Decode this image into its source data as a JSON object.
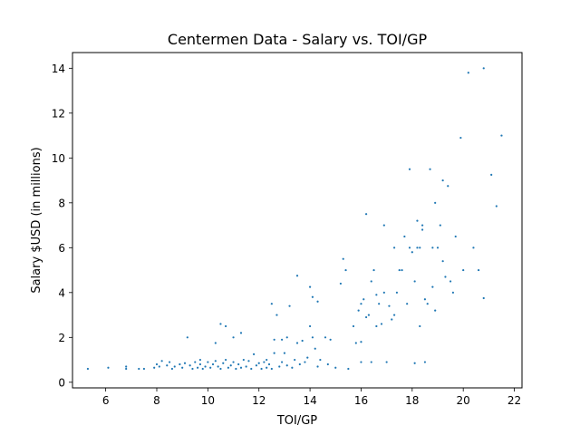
{
  "chart_data": {
    "type": "scatter",
    "title": "Centermen Data - Salary vs. TOI/GP",
    "xlabel": "TOI/GP",
    "ylabel": "Salary $USD (in millions)",
    "xlim": [
      4.7,
      22.3
    ],
    "ylim": [
      -0.25,
      14.7
    ],
    "xticks": [
      "6",
      "8",
      "10",
      "12",
      "14",
      "16",
      "18",
      "20",
      "22"
    ],
    "yticks": [
      "0",
      "2",
      "4",
      "6",
      "8",
      "10",
      "12",
      "14"
    ],
    "grid": false,
    "legend": "none",
    "marker_color": "#1f77b4",
    "series": [
      {
        "points": [
          [
            5.3,
            0.6
          ],
          [
            6.1,
            0.65
          ],
          [
            6.8,
            0.6
          ],
          [
            6.8,
            0.7
          ],
          [
            7.3,
            0.6
          ],
          [
            7.5,
            0.6
          ],
          [
            7.9,
            0.65
          ],
          [
            8.0,
            0.8
          ],
          [
            8.1,
            0.7
          ],
          [
            8.2,
            0.95
          ],
          [
            8.4,
            0.75
          ],
          [
            8.5,
            0.9
          ],
          [
            8.6,
            0.6
          ],
          [
            8.7,
            0.7
          ],
          [
            8.9,
            0.8
          ],
          [
            9.0,
            0.65
          ],
          [
            9.1,
            0.85
          ],
          [
            9.2,
            2.0
          ],
          [
            9.3,
            0.75
          ],
          [
            9.4,
            0.6
          ],
          [
            9.5,
            0.9
          ],
          [
            9.6,
            0.65
          ],
          [
            9.7,
            0.8
          ],
          [
            9.7,
            1.0
          ],
          [
            9.8,
            0.6
          ],
          [
            9.9,
            0.7
          ],
          [
            10.0,
            0.9
          ],
          [
            10.1,
            0.65
          ],
          [
            10.2,
            0.8
          ],
          [
            10.3,
            0.95
          ],
          [
            10.3,
            1.75
          ],
          [
            10.4,
            0.7
          ],
          [
            10.5,
            2.6
          ],
          [
            10.5,
            0.6
          ],
          [
            10.6,
            0.85
          ],
          [
            10.7,
            2.5
          ],
          [
            10.7,
            1.0
          ],
          [
            10.8,
            0.65
          ],
          [
            10.9,
            0.75
          ],
          [
            11.0,
            2.0
          ],
          [
            11.0,
            0.9
          ],
          [
            11.1,
            0.6
          ],
          [
            11.2,
            0.8
          ],
          [
            11.3,
            2.2
          ],
          [
            11.3,
            0.65
          ],
          [
            11.4,
            1.0
          ],
          [
            11.5,
            0.7
          ],
          [
            11.6,
            0.95
          ],
          [
            11.7,
            0.6
          ],
          [
            11.8,
            1.25
          ],
          [
            11.9,
            0.75
          ],
          [
            12.0,
            0.85
          ],
          [
            12.1,
            0.6
          ],
          [
            12.2,
            0.9
          ],
          [
            12.3,
            1.0
          ],
          [
            12.3,
            0.65
          ],
          [
            12.4,
            0.8
          ],
          [
            12.5,
            3.5
          ],
          [
            12.5,
            0.6
          ],
          [
            12.6,
            1.3
          ],
          [
            12.6,
            1.9
          ],
          [
            12.7,
            3.0
          ],
          [
            12.8,
            0.7
          ],
          [
            12.9,
            1.9
          ],
          [
            12.9,
            0.9
          ],
          [
            13.0,
            1.3
          ],
          [
            13.1,
            0.75
          ],
          [
            13.1,
            2.0
          ],
          [
            13.2,
            3.4
          ],
          [
            13.3,
            0.65
          ],
          [
            13.4,
            1.0
          ],
          [
            13.5,
            4.75
          ],
          [
            13.5,
            1.75
          ],
          [
            13.6,
            0.8
          ],
          [
            13.7,
            1.85
          ],
          [
            13.8,
            0.9
          ],
          [
            13.9,
            1.1
          ],
          [
            14.0,
            4.25
          ],
          [
            14.0,
            2.5
          ],
          [
            14.1,
            3.8
          ],
          [
            14.1,
            2.0
          ],
          [
            14.2,
            1.5
          ],
          [
            14.3,
            3.6
          ],
          [
            14.3,
            0.7
          ],
          [
            14.4,
            1.0
          ],
          [
            14.6,
            2.0
          ],
          [
            14.7,
            0.8
          ],
          [
            14.8,
            1.9
          ],
          [
            15.0,
            0.65
          ],
          [
            15.2,
            4.4
          ],
          [
            15.3,
            5.5
          ],
          [
            15.4,
            5.0
          ],
          [
            15.5,
            0.6
          ],
          [
            15.7,
            2.5
          ],
          [
            15.8,
            1.75
          ],
          [
            15.9,
            3.2
          ],
          [
            16.0,
            1.8
          ],
          [
            16.0,
            3.5
          ],
          [
            16.0,
            0.9
          ],
          [
            16.1,
            3.7
          ],
          [
            16.2,
            7.5
          ],
          [
            16.2,
            2.9
          ],
          [
            16.3,
            3.0
          ],
          [
            16.4,
            4.5
          ],
          [
            16.4,
            0.9
          ],
          [
            16.5,
            5.0
          ],
          [
            16.6,
            2.5
          ],
          [
            16.6,
            3.9
          ],
          [
            16.7,
            3.5
          ],
          [
            16.8,
            2.6
          ],
          [
            16.9,
            4.0
          ],
          [
            16.9,
            7.0
          ],
          [
            17.0,
            0.9
          ],
          [
            17.1,
            3.4
          ],
          [
            17.2,
            2.8
          ],
          [
            17.3,
            6.0
          ],
          [
            17.3,
            3.0
          ],
          [
            17.4,
            4.0
          ],
          [
            17.5,
            5.0
          ],
          [
            17.6,
            5.0
          ],
          [
            17.7,
            6.5
          ],
          [
            17.8,
            3.5
          ],
          [
            17.9,
            6.0
          ],
          [
            17.9,
            9.5
          ],
          [
            18.0,
            5.8
          ],
          [
            18.1,
            4.5
          ],
          [
            18.1,
            0.85
          ],
          [
            18.2,
            7.2
          ],
          [
            18.3,
            6.0
          ],
          [
            18.3,
            2.5
          ],
          [
            18.4,
            6.8
          ],
          [
            18.5,
            3.7
          ],
          [
            18.5,
            0.9
          ],
          [
            18.6,
            3.5
          ],
          [
            18.7,
            9.5
          ],
          [
            18.8,
            6.0
          ],
          [
            18.8,
            4.25
          ],
          [
            18.9,
            3.2
          ],
          [
            19.0,
            6.0
          ],
          [
            19.1,
            7.0
          ],
          [
            19.2,
            9.0
          ],
          [
            19.2,
            5.4
          ],
          [
            19.3,
            4.7
          ],
          [
            19.4,
            8.75
          ],
          [
            19.5,
            4.5
          ],
          [
            19.6,
            4.0
          ],
          [
            19.7,
            6.5
          ],
          [
            19.9,
            10.9
          ],
          [
            20.0,
            5.0
          ],
          [
            20.2,
            13.8
          ],
          [
            20.4,
            6.0
          ],
          [
            20.6,
            5.0
          ],
          [
            20.8,
            14.0
          ],
          [
            20.8,
            3.75
          ],
          [
            21.1,
            9.25
          ],
          [
            21.3,
            7.85
          ],
          [
            21.5,
            11.0
          ],
          [
            18.2,
            6.0
          ],
          [
            18.4,
            7.0
          ],
          [
            18.9,
            8.0
          ]
        ]
      }
    ]
  }
}
